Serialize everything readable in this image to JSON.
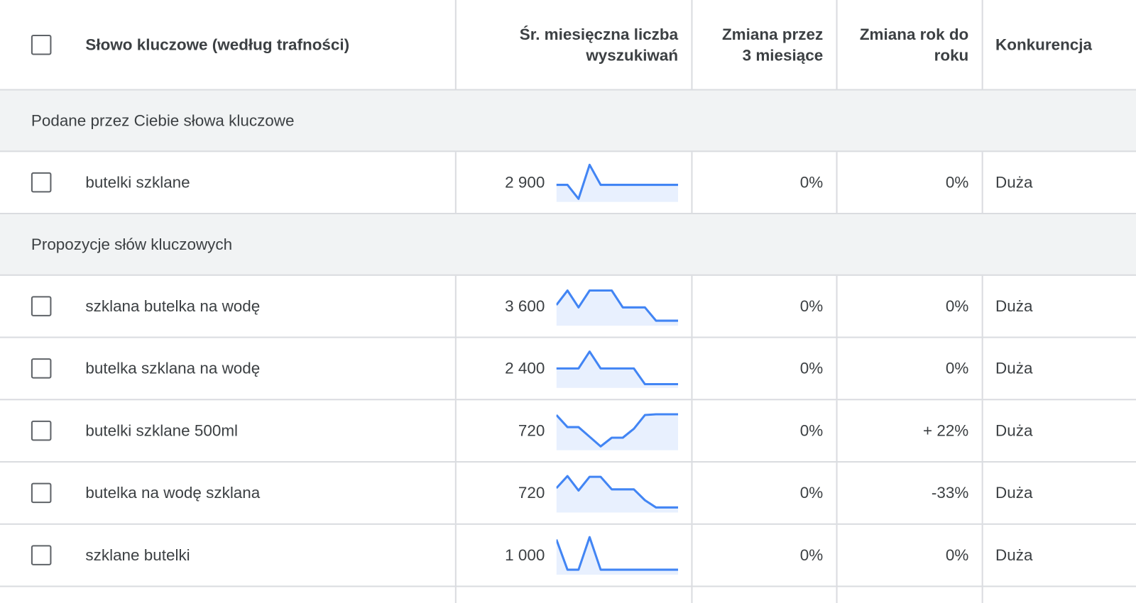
{
  "header": {
    "keyword": "Słowo kluczowe (według trafności)",
    "avg_searches": [
      "Śr. miesięczna liczba",
      "wyszukiwań"
    ],
    "three_month": [
      "Zmiana przez",
      "3 miesiące"
    ],
    "yoy": [
      "Zmiana rok do",
      "roku"
    ],
    "competition": "Konkurencja"
  },
  "colors": {
    "line": "#4285f4",
    "fill": "#e8f0fe",
    "group_bg": "#f1f3f4"
  },
  "groups": [
    {
      "label": "Podane przez Ciebie słowa kluczowe",
      "rows": [
        {
          "keyword": "butelki szklane",
          "avg": "2 900",
          "trend": [
            65,
            65,
            7,
            148,
            65,
            65,
            65,
            65,
            65,
            65,
            65,
            65
          ],
          "three_month": "0%",
          "yoy": "0%",
          "competition": "Duża"
        }
      ]
    },
    {
      "label": "Propozycje słów kluczowych",
      "rows": [
        {
          "keyword": "szklana butelka na wodę",
          "avg": "3 600",
          "trend": [
            80,
            140,
            70,
            140,
            140,
            140,
            70,
            70,
            70,
            15,
            15,
            15
          ],
          "three_month": "0%",
          "yoy": "0%",
          "competition": "Duża"
        },
        {
          "keyword": "butelka szklana na wodę",
          "avg": "2 400",
          "trend": [
            75,
            75,
            75,
            145,
            75,
            75,
            75,
            75,
            10,
            10,
            10,
            10
          ],
          "three_month": "0%",
          "yoy": "0%",
          "competition": "Duża"
        },
        {
          "keyword": "butelki szklane 500ml",
          "avg": "720",
          "trend": [
            140,
            90,
            90,
            50,
            10,
            46,
            46,
            83,
            140,
            143,
            143,
            143
          ],
          "three_month": "0%",
          "yoy": "+ 22%",
          "competition": "Duża"
        },
        {
          "keyword": "butelka na wodę szklana",
          "avg": "720",
          "trend": [
            95,
            145,
            85,
            142,
            142,
            90,
            90,
            90,
            45,
            15,
            15,
            15
          ],
          "three_month": "0%",
          "yoy": "-33%",
          "competition": "Duża"
        },
        {
          "keyword": "szklane butelki",
          "avg": "1 000",
          "trend": [
            140,
            15,
            15,
            150,
            15,
            15,
            15,
            15,
            15,
            15,
            15,
            15
          ],
          "three_month": "0%",
          "yoy": "0%",
          "competition": "Duża"
        }
      ]
    }
  ]
}
